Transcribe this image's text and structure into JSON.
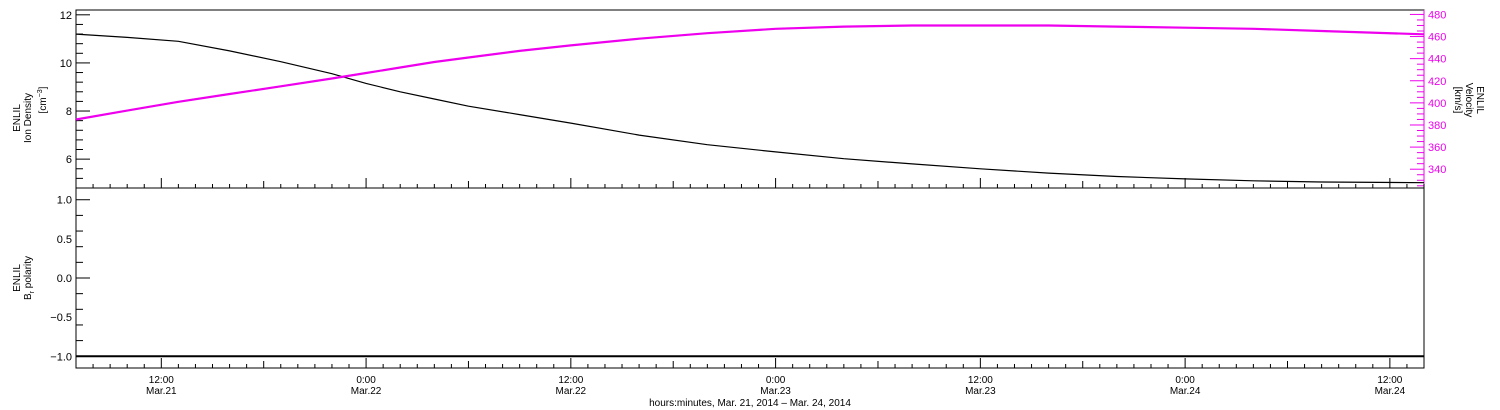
{
  "chart_data": [
    {
      "type": "line",
      "panel": "top",
      "xlabel": "hours:minutes, Mar. 21, 2014 – Mar. 24, 2014",
      "x_unit": "hours since Mar.21 00:00",
      "xlim": [
        7.0,
        86.0
      ],
      "x_ticks": [
        {
          "x": 12,
          "time": "12:00",
          "date": "Mar.21"
        },
        {
          "x": 24,
          "time": "0:00",
          "date": "Mar.22"
        },
        {
          "x": 36,
          "time": "12:00",
          "date": "Mar.22"
        },
        {
          "x": 48,
          "time": "0:00",
          "date": "Mar.23"
        },
        {
          "x": 60,
          "time": "12:00",
          "date": "Mar.23"
        },
        {
          "x": 72,
          "time": "0:00",
          "date": "Mar.24"
        },
        {
          "x": 84,
          "time": "12:00",
          "date": "Mar.24"
        }
      ],
      "left_axis": {
        "label_line1": "ENLIL",
        "label_line2": "Ion Density",
        "unit_pre": "[cm",
        "unit_sup": "−3",
        "unit_post": "]",
        "ylim": [
          4.8,
          12.2
        ],
        "ticks": [
          "6",
          "8",
          "10",
          "12"
        ],
        "color": "#000000"
      },
      "right_axis": {
        "label_line1": "ENLIL",
        "label_line2": "Velocity",
        "unit": "[km/s]",
        "ylim": [
          323,
          484
        ],
        "ticks": [
          "340",
          "360",
          "380",
          "400",
          "420",
          "440",
          "460",
          "480"
        ],
        "color": "#ee00ee"
      },
      "series": [
        {
          "axis": "left",
          "color": "#000000",
          "x": [
            7,
            10,
            13,
            16,
            19,
            22,
            24,
            26,
            28,
            30,
            33,
            36,
            40,
            44,
            48,
            52,
            56,
            60,
            64,
            68,
            72,
            76,
            80,
            86
          ],
          "values": [
            11.2,
            11.06,
            10.9,
            10.5,
            10.05,
            9.55,
            9.15,
            8.8,
            8.5,
            8.2,
            7.85,
            7.5,
            7.0,
            6.6,
            6.3,
            6.02,
            5.8,
            5.6,
            5.42,
            5.28,
            5.18,
            5.1,
            5.05,
            5.02
          ]
        },
        {
          "axis": "right",
          "color": "#ee00ee",
          "x": [
            7,
            10,
            13,
            16,
            19,
            22,
            24,
            26,
            28,
            30,
            33,
            36,
            40,
            44,
            48,
            52,
            56,
            60,
            64,
            68,
            72,
            76,
            80,
            86
          ],
          "values": [
            385,
            393,
            401,
            408,
            415,
            422,
            427,
            432,
            437,
            441,
            447,
            452,
            458,
            463,
            467,
            469,
            470,
            470,
            470,
            469,
            468,
            467,
            465,
            462
          ]
        }
      ]
    },
    {
      "type": "line",
      "panel": "bottom",
      "left_axis": {
        "label_line1": "ENLIL",
        "label_line2": "B",
        "label_sub": "r",
        "label_post": " polarity",
        "ylim": [
          -1.15,
          1.15
        ],
        "ticks": [
          "−1.0",
          "−0.5",
          "0.0",
          "0.5",
          "1.0"
        ]
      },
      "series": [
        {
          "color": "#000000",
          "x": [
            7,
            86
          ],
          "values": [
            -1.0,
            -1.0
          ]
        }
      ]
    }
  ]
}
